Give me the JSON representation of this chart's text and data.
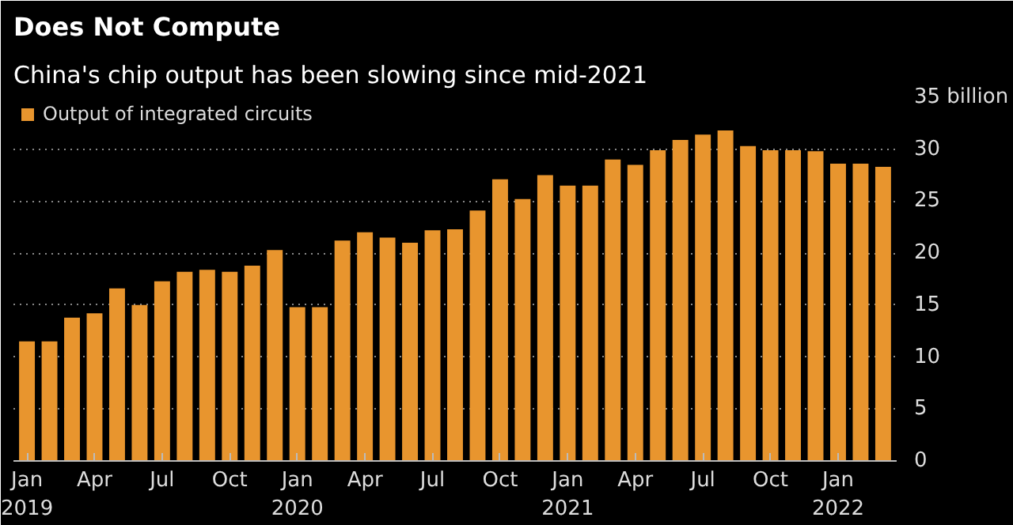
{
  "chart_data": {
    "type": "bar",
    "title": "Does Not Compute",
    "subtitle": "China's chip output has been slowing since mid-2021",
    "categories": [
      "Jan\n2019",
      null,
      null,
      "Apr",
      null,
      null,
      "Jul",
      null,
      null,
      "Oct",
      null,
      null,
      "Jan\n2020",
      null,
      null,
      "Apr",
      null,
      null,
      "Jul",
      null,
      null,
      "Oct",
      null,
      null,
      "Jan\n2021",
      null,
      null,
      "Apr",
      null,
      null,
      "Jul",
      null,
      null,
      "Oct",
      null,
      null,
      "Jan\n2022",
      null,
      null
    ],
    "series": [
      {
        "name": "Output of integrated circuits",
        "color": "#e8952e",
        "values": [
          11.5,
          11.5,
          13.8,
          14.2,
          16.6,
          15.0,
          17.3,
          18.2,
          18.4,
          18.2,
          18.8,
          20.3,
          14.8,
          14.8,
          21.2,
          22.0,
          21.5,
          21.0,
          22.2,
          22.3,
          24.1,
          27.1,
          25.2,
          27.5,
          26.5,
          26.5,
          29.0,
          28.5,
          29.9,
          30.9,
          31.4,
          31.8,
          30.3,
          29.9,
          29.9,
          29.8,
          28.6,
          28.6,
          28.3
        ]
      }
    ],
    "ylim": [
      0,
      35
    ],
    "yticks": [
      0,
      5,
      10,
      15,
      20,
      25,
      30,
      {
        "value": 35,
        "label": "35 billion"
      }
    ],
    "grid": "y",
    "legend": "top left"
  }
}
